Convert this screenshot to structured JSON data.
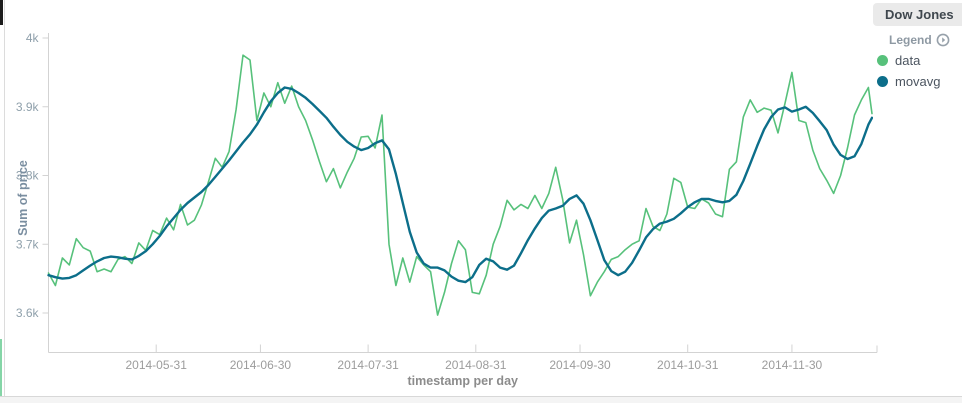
{
  "panel": {
    "title": "Dow Jones",
    "legend": {
      "header": "Legend",
      "items": [
        {
          "label": "data",
          "color": "#57c17b"
        },
        {
          "label": "movavg",
          "color": "#0c6e8a"
        }
      ]
    }
  },
  "chart_data": {
    "type": "line",
    "title": "Dow Jones",
    "xlabel": "timestamp per day",
    "ylabel": "Sum of price",
    "x_start_date": "2014-04-30",
    "x_step_days": 2,
    "x_end_date": "2014-12-24",
    "x_tick_labels": [
      "2014-05-31",
      "2014-06-30",
      "2014-07-31",
      "2014-08-31",
      "2014-09-30",
      "2014-10-31",
      "2014-11-30"
    ],
    "x_tick_day_offsets": [
      31,
      61,
      92,
      123,
      153,
      184,
      214
    ],
    "y_tick_labels": [
      "4k",
      "3.9k",
      "3.8k",
      "3.7k",
      "3.6k"
    ],
    "y_tick_values_k": [
      4.0,
      3.9,
      3.8,
      3.7,
      3.6
    ],
    "ylim_k": [
      3.543,
      4.007
    ],
    "grid": false,
    "legend_position": "right",
    "series": [
      {
        "name": "data",
        "color": "#57c17b",
        "stroke_width": 1.6,
        "values_k": [
          3.658,
          3.64,
          3.68,
          3.67,
          3.708,
          3.695,
          3.69,
          3.66,
          3.664,
          3.66,
          3.678,
          3.682,
          3.672,
          3.702,
          3.691,
          3.72,
          3.714,
          3.738,
          3.721,
          3.758,
          3.728,
          3.735,
          3.757,
          3.79,
          3.825,
          3.812,
          3.835,
          3.896,
          3.975,
          3.968,
          3.88,
          3.92,
          3.9,
          3.935,
          3.905,
          3.93,
          3.9,
          3.88,
          3.852,
          3.82,
          3.791,
          3.81,
          3.782,
          3.805,
          3.825,
          3.856,
          3.857,
          3.84,
          3.888,
          3.7,
          3.64,
          3.68,
          3.645,
          3.682,
          3.67,
          3.66,
          3.597,
          3.63,
          3.672,
          3.705,
          3.692,
          3.63,
          3.628,
          3.655,
          3.7,
          3.726,
          3.764,
          3.75,
          3.758,
          3.752,
          3.771,
          3.752,
          3.774,
          3.812,
          3.765,
          3.702,
          3.735,
          3.685,
          3.625,
          3.645,
          3.66,
          3.678,
          3.682,
          3.692,
          3.7,
          3.705,
          3.752,
          3.726,
          3.72,
          3.744,
          3.796,
          3.79,
          3.754,
          3.752,
          3.766,
          3.76,
          3.744,
          3.74,
          3.809,
          3.82,
          3.885,
          3.91,
          3.892,
          3.898,
          3.895,
          3.862,
          3.905,
          3.95,
          3.88,
          3.877,
          3.837,
          3.81,
          3.793,
          3.774,
          3.8,
          3.84,
          3.888,
          3.91,
          3.928,
          3.89
        ]
      },
      {
        "name": "movavg",
        "color": "#0c6e8a",
        "stroke_width": 2.4,
        "values_k": [
          3.655,
          3.652,
          3.65,
          3.651,
          3.655,
          3.662,
          3.669,
          3.675,
          3.68,
          3.682,
          3.681,
          3.679,
          3.678,
          3.683,
          3.69,
          3.7,
          3.712,
          3.726,
          3.738,
          3.75,
          3.76,
          3.768,
          3.776,
          3.786,
          3.798,
          3.81,
          3.822,
          3.835,
          3.848,
          3.86,
          3.874,
          3.892,
          3.908,
          3.92,
          3.928,
          3.926,
          3.92,
          3.913,
          3.904,
          3.894,
          3.884,
          3.871,
          3.859,
          3.849,
          3.842,
          3.837,
          3.84,
          3.847,
          3.851,
          3.838,
          3.802,
          3.76,
          3.718,
          3.688,
          3.672,
          3.666,
          3.666,
          3.662,
          3.653,
          3.647,
          3.645,
          3.652,
          3.67,
          3.679,
          3.675,
          3.666,
          3.663,
          3.669,
          3.687,
          3.706,
          3.723,
          3.738,
          3.749,
          3.752,
          3.756,
          3.766,
          3.771,
          3.759,
          3.735,
          3.706,
          3.677,
          3.661,
          3.655,
          3.66,
          3.673,
          3.691,
          3.71,
          3.722,
          3.73,
          3.733,
          3.737,
          3.745,
          3.754,
          3.761,
          3.766,
          3.766,
          3.763,
          3.761,
          3.763,
          3.772,
          3.792,
          3.817,
          3.843,
          3.867,
          3.885,
          3.896,
          3.899,
          3.893,
          3.896,
          3.9,
          3.891,
          3.879,
          3.866,
          3.845,
          3.83,
          3.824,
          3.828,
          3.846,
          3.874,
          3.884
        ]
      }
    ]
  }
}
